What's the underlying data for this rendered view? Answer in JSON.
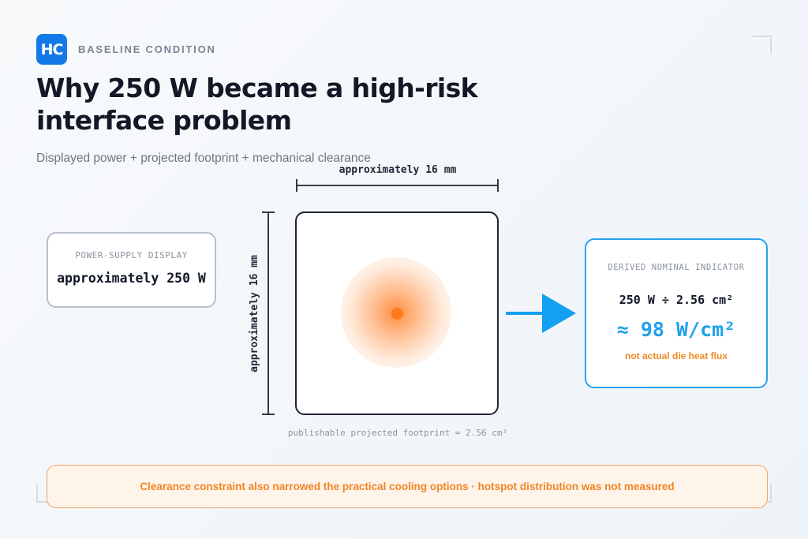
{
  "header": {
    "logo_text": "HC",
    "eyebrow": "BASELINE CONDITION",
    "title": "Why 250 W became a high-risk interface problem",
    "subtitle": "Displayed power + projected footprint + mechanical clearance"
  },
  "psu_display": {
    "label": "POWER-SUPPLY DISPLAY",
    "value": "approximately 250 W"
  },
  "footprint": {
    "width_label": "approximately 16 mm",
    "height_label": "approximately 16 mm",
    "caption": "publishable projected footprint ≈ 2.56 cm²"
  },
  "derived": {
    "label": "DERIVED NOMINAL INDICATOR",
    "calculation": "250 W ÷ 2.56 cm²",
    "result": "≈ 98 W/cm²",
    "note": "not actual die heat flux"
  },
  "banner": {
    "text": "Clearance constraint also narrowed the practical cooling options · hotspot distribution was not measured"
  },
  "colors": {
    "accent_blue": "#1ea1ea",
    "hotspot_orange": "#ff7a1a",
    "warning_orange": "#ef8525",
    "logo_blue": "#1479e8"
  }
}
